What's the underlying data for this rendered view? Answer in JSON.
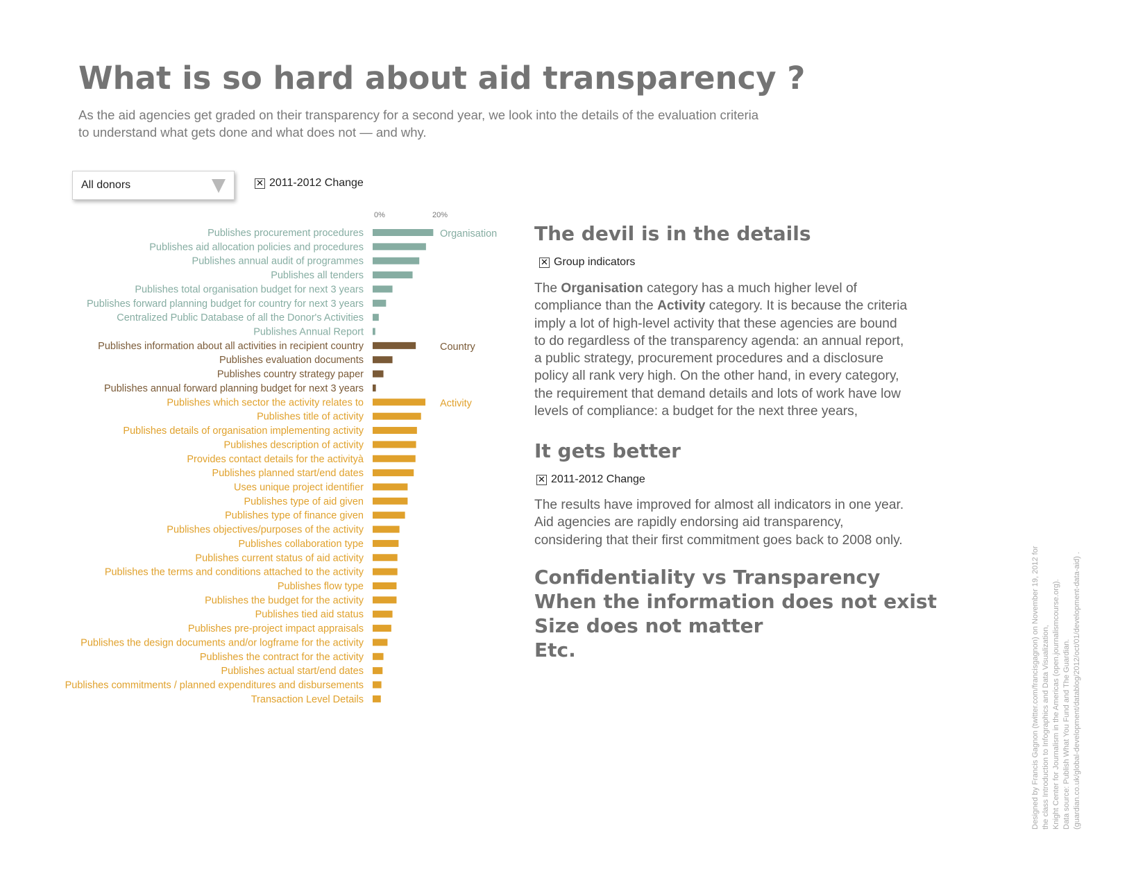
{
  "header": {
    "title": "What is so hard about aid transparency ?",
    "subtitle_line1": "As the aid agencies get graded on their transparency for a second year, we look into the details of the evaluation criteria",
    "subtitle_line2": "to understand what gets done and what does not — and why."
  },
  "controls": {
    "donor_select_value": "All donors",
    "change_toggle_label": "2011-2012 Change",
    "change_toggle_mark": "✕"
  },
  "colors": {
    "Organisation": "#86ada2",
    "Country": "#7a5a37",
    "Activity": "#e0a12c"
  },
  "chart_data": {
    "type": "bar",
    "orientation": "horizontal",
    "x_ticks": [
      "0%",
      "20%"
    ],
    "xlim": [
      0,
      20
    ],
    "groups": [
      "Organisation",
      "Country",
      "Activity"
    ],
    "categories": [
      {
        "label": "Publishes procurement procedures",
        "group": "Organisation",
        "value": 20.8
      },
      {
        "label": "Publishes aid allocation policies and procedures",
        "group": "Organisation",
        "value": 18.3
      },
      {
        "label": "Publishes annual audit of programmes",
        "group": "Organisation",
        "value": 16.0
      },
      {
        "label": "Publishes all tenders",
        "group": "Organisation",
        "value": 13.7
      },
      {
        "label": "Publishes total organisation budget for next 3 years",
        "group": "Organisation",
        "value": 6.8
      },
      {
        "label": "Publishes forward planning budget for country for next 3 years",
        "group": "Organisation",
        "value": 4.6
      },
      {
        "label": "Centralized Public Database of all the Donor's Activities",
        "group": "Organisation",
        "value": 2.1
      },
      {
        "label": "Publishes Annual Report",
        "group": "Organisation",
        "value": 0.9
      },
      {
        "label": "Publishes information about all activities in recipient country",
        "group": "Country",
        "value": 14.8
      },
      {
        "label": "Publishes evaluation documents",
        "group": "Country",
        "value": 6.8
      },
      {
        "label": "Publishes country strategy paper",
        "group": "Country",
        "value": 3.7
      },
      {
        "label": "Publishes annual forward planning budget for next 3 years",
        "group": "Country",
        "value": 1.1
      },
      {
        "label": "Publishes which sector the activity relates to",
        "group": "Activity",
        "value": 18.1
      },
      {
        "label": "Publishes title of activity",
        "group": "Activity",
        "value": 16.6
      },
      {
        "label": "Publishes details of organisation implementing activity",
        "group": "Activity",
        "value": 15.2
      },
      {
        "label": "Publishes description of activity",
        "group": "Activity",
        "value": 14.9
      },
      {
        "label": "Provides contact details for the activityà",
        "group": "Activity",
        "value": 14.7
      },
      {
        "label": "Publishes planned start/end dates",
        "group": "Activity",
        "value": 14.1
      },
      {
        "label": "Uses unique project identifier",
        "group": "Activity",
        "value": 12.0
      },
      {
        "label": "Publishes type of aid given",
        "group": "Activity",
        "value": 12.0
      },
      {
        "label": "Publishes type of finance given",
        "group": "Activity",
        "value": 11.1
      },
      {
        "label": "Publishes objectives/purposes of the activity",
        "group": "Activity",
        "value": 9.2
      },
      {
        "label": "Publishes collaboration type",
        "group": "Activity",
        "value": 8.9
      },
      {
        "label": "Publishes current status of aid activity",
        "group": "Activity",
        "value": 8.5
      },
      {
        "label": "Publishes the terms and conditions attached to the activity",
        "group": "Activity",
        "value": 8.5
      },
      {
        "label": "Publishes flow type",
        "group": "Activity",
        "value": 8.2
      },
      {
        "label": "Publishes the budget for the activity",
        "group": "Activity",
        "value": 8.2
      },
      {
        "label": "Publishes tied aid status",
        "group": "Activity",
        "value": 6.8
      },
      {
        "label": "Publishes pre-project impact appraisals",
        "group": "Activity",
        "value": 6.4
      },
      {
        "label": "Publishes the design documents and/or logframe for the activity",
        "group": "Activity",
        "value": 5.1
      },
      {
        "label": "Publishes the contract for the activity",
        "group": "Activity",
        "value": 3.7
      },
      {
        "label": "Publishes actual start/end dates",
        "group": "Activity",
        "value": 3.4
      },
      {
        "label": "Publishes commitments / planned expenditures and disbursements",
        "group": "Activity",
        "value": 3.0
      },
      {
        "label": "Transaction Level Details",
        "group": "Activity",
        "value": 2.8
      }
    ]
  },
  "details": {
    "heading": "The devil is in the details",
    "group_toggle_label": "Group indicators",
    "group_toggle_mark": "✕",
    "p1": {
      "t1": "The ",
      "b1": "Organisation",
      "t2": " category has a much higher level of compliance than the ",
      "b2": "Activity",
      "t3": " category. It is because the criteria imply a lot of high-level activity that these agencies are bound to do regardless of the transparency agenda: an annual report, a public strategy, procurement procedures and a disclosure policy all rank very high. On the other hand, in every category, the requirement that demand details and lots of work have low levels of compliance: a budget for the next three years,"
    }
  },
  "better": {
    "heading": "It gets better",
    "change_toggle_label": "2011-2012 Change",
    "change_toggle_mark": "✕",
    "text": "The results have improved for almost all indicators in one year.  Aid agencies are rapidly endorsing aid transparency, considering that their first commitment goes back to 2008 only."
  },
  "topics": [
    "Confidentiality vs Transparency",
    "When the information does not exist",
    "Size does not matter",
    "Etc."
  ],
  "credits": [
    "Designed by Francis Gagnon (twitter.com/francisgagnon) on November 19, 2012 for",
    "the class Introduction to Infographics and Data Visualization,",
    "Knight Center for Journalism in the Americas (open.journalismcourse.org).",
    "Data source: Publish What You Fund and The Guardian.",
    "(guardian.co.uk/global-development/datablog/2012/oct/01/development-data-aid) ."
  ]
}
